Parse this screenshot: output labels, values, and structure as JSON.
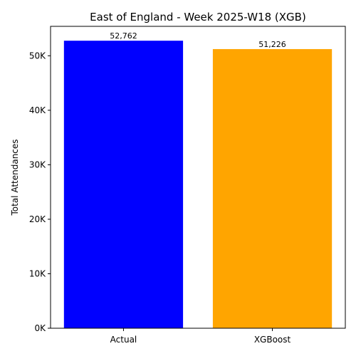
{
  "chart_data": {
    "type": "bar",
    "title": "East of England - Week 2025-W18 (XGB)",
    "xlabel": "",
    "ylabel": "Total Attendances",
    "categories": [
      "Actual",
      "XGBoost"
    ],
    "values": [
      52762,
      51226
    ],
    "data_labels": [
      "52,762",
      "51,226"
    ],
    "colors": [
      "#0000ff",
      "#ffa500"
    ],
    "ylim": [
      0,
      55400
    ],
    "yticks": [
      0,
      10000,
      20000,
      30000,
      40000,
      50000
    ],
    "ytick_labels": [
      "0K",
      "10K",
      "20K",
      "30K",
      "40K",
      "50K"
    ],
    "grid": false,
    "legend": "none"
  }
}
